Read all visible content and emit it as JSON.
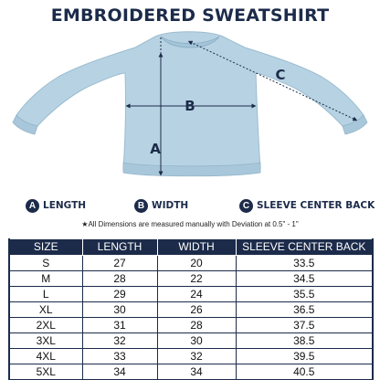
{
  "title": "EMBROIDERED SWEATSHIRT",
  "colors": {
    "navy": "#1c2b4a",
    "sweatshirt": "#b7d3e3"
  },
  "diagram": {
    "markers": {
      "a": "A",
      "b": "B",
      "c": "C"
    }
  },
  "legend": [
    {
      "letter": "A",
      "label": "LENGTH"
    },
    {
      "letter": "B",
      "label": "WIDTH"
    },
    {
      "letter": "C",
      "label": "SLEEVE CENTER BACK"
    }
  ],
  "note": "All Dimensions are measured manually with Deviation at 0.5\" - 1\"",
  "table": {
    "headers": [
      "SIZE",
      "LENGTH",
      "WIDTH",
      "SLEEVE CENTER BACK"
    ],
    "rows": [
      [
        "S",
        "27",
        "20",
        "33.5"
      ],
      [
        "M",
        "28",
        "22",
        "34.5"
      ],
      [
        "L",
        "29",
        "24",
        "35.5"
      ],
      [
        "XL",
        "30",
        "26",
        "36.5"
      ],
      [
        "2XL",
        "31",
        "28",
        "37.5"
      ],
      [
        "3XL",
        "32",
        "30",
        "38.5"
      ],
      [
        "4XL",
        "33",
        "32",
        "39.5"
      ],
      [
        "5XL",
        "34",
        "34",
        "40.5"
      ]
    ]
  }
}
